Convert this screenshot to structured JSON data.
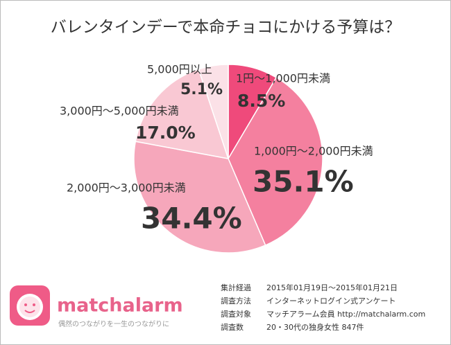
{
  "chart_data": {
    "type": "pie",
    "title": "バレンタインデーで本命チョコにかける予算は？",
    "categories": [
      "1円～1,000円未満",
      "1,000円～2,000円未満",
      "2,000円～3,000円未満",
      "3,000円～5,000円未満",
      "5,000円以上"
    ],
    "values": [
      8.5,
      35.1,
      34.4,
      17.0,
      5.1
    ],
    "value_labels": [
      "8.5%",
      "35.1%",
      "34.4%",
      "17.0%",
      "5.1%"
    ],
    "colors": [
      "#ef4a7b",
      "#f4809f",
      "#f6a7bb",
      "#f9c8d3",
      "#fbe1e7"
    ]
  },
  "footer": {
    "logo": "matchalarm",
    "tagline": "偶然のつながりを一生のつながりに",
    "survey": [
      {
        "label": "集計経過",
        "value": "2015年01月19日～2015年01月21日"
      },
      {
        "label": "調査方法",
        "value": "インターネットログイン式アンケート"
      },
      {
        "label": "調査対象",
        "value": "マッチアラーム会員 http://matchalarm.com"
      },
      {
        "label": "調査数",
        "value": "20・30代の独身女性 847件"
      }
    ]
  }
}
